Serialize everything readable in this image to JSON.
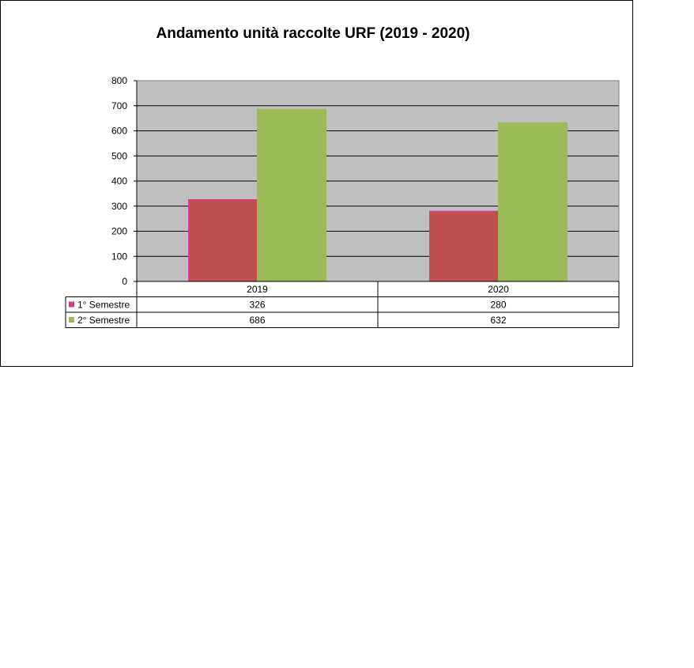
{
  "chart_data": {
    "type": "bar",
    "title": "Andamento unità raccolte URF (2019 - 2020)",
    "categories": [
      "2019",
      "2020"
    ],
    "series": [
      {
        "name": "1° Semestre",
        "values": [
          326,
          280
        ],
        "color": "#c0504d",
        "border": "#e033b0",
        "legend_color": "#d9348f"
      },
      {
        "name": "2° Semestre",
        "values": [
          686,
          632
        ],
        "color": "#9bbb59",
        "border": "#9bbb59",
        "legend_color": "#9bbb59"
      }
    ],
    "ylim": [
      0,
      800
    ],
    "yticks": [
      0,
      100,
      200,
      300,
      400,
      500,
      600,
      700,
      800
    ],
    "grid": true,
    "plot_background": "#c0c0c0",
    "data_table": true
  }
}
